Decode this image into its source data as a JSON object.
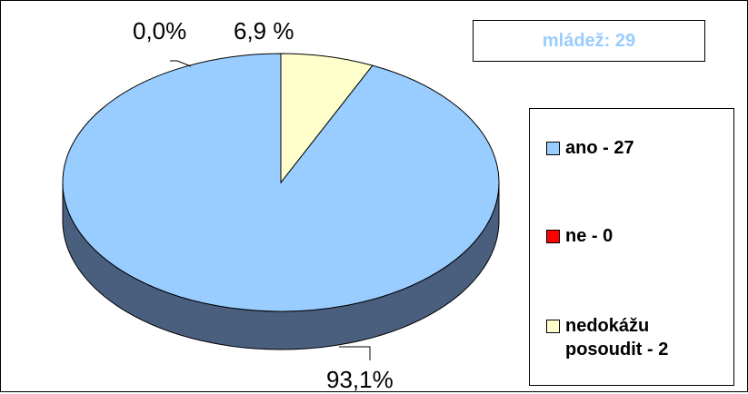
{
  "chart_data": {
    "type": "pie",
    "title": "mládež: 29",
    "categories": [
      "ano - 27",
      "ne - 0",
      "nedokážu\nposoudit - 2"
    ],
    "values": [
      27,
      0,
      2
    ],
    "data_labels": [
      "93,1%",
      "0,0%",
      "6,9 %"
    ],
    "colors": [
      "#99ccff",
      "#ff0000",
      "#ffffcc"
    ],
    "shadow_colors": [
      "#4a5f7e",
      "#800000",
      "#808066"
    ],
    "legend": "right",
    "style": "3d"
  }
}
